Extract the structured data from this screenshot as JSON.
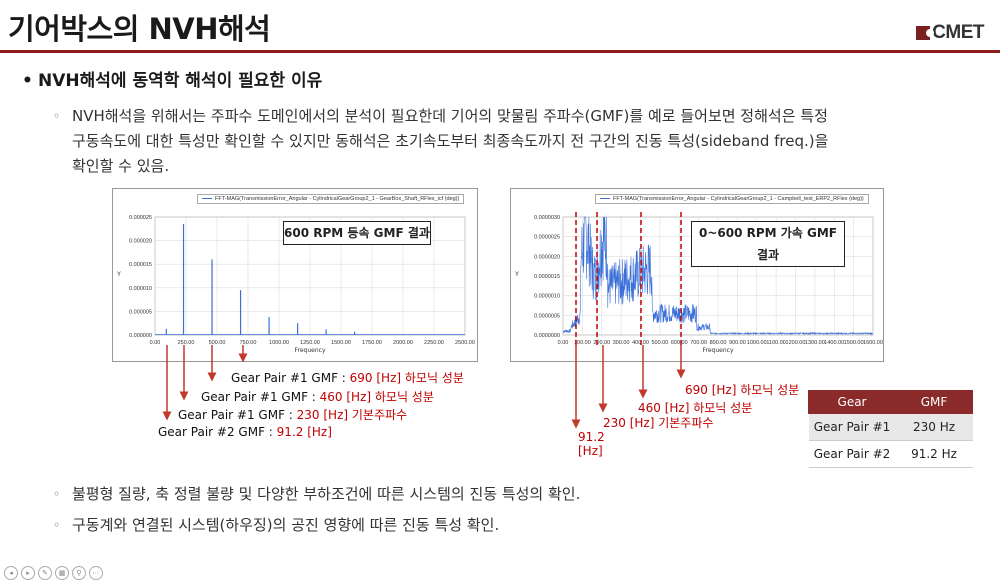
{
  "title": "기어박스의 NVH해석",
  "logo": "CMET",
  "bullet1": "NVH해석에 동역학 해석이 필요한 이유",
  "bullet1_dot": "•",
  "sub_marker": "◦",
  "para": [
    "NVH해석을 위해서는 주파수 도메인에서의 분석이 필요한데 기어의 맞물림 주파수(GMF)를 예로 들어보면 정해석은 특정",
    "구동속도에 대한 특성만 확인할 수 있지만 동해석은 초기속도부터 최종속도까지 전 구간의 진동 특성(sideband freq.)을",
    "확인할 수 있음."
  ],
  "chart_data": [
    {
      "type": "line",
      "legend": "FFT-MAG(TransmissionError_Angular - CylindricalGearGroup2_1 - GearBox_Shaft_RFlex_icf (deg))",
      "box_label": "600 RPM 등속 GMF 결과",
      "xlabel": "Frequency",
      "ylabel": "Y",
      "xticks": [
        "0.00",
        "250.00",
        "500.00",
        "750.00",
        "1000.00",
        "1250.00",
        "1500.00",
        "1750.00",
        "2000.00",
        "2250.00",
        "2500.00"
      ],
      "yticks": [
        "0.000000",
        "0.000005",
        "0.000010",
        "0.000015",
        "0.000020",
        "0.000025"
      ],
      "xlim": [
        0,
        2500
      ],
      "ylim": [
        0,
        2.5e-05
      ],
      "peaks": [
        [
          91.2,
          1.3e-06
        ],
        [
          230,
          2.35e-05
        ],
        [
          460,
          1.6e-05
        ],
        [
          690,
          9.5e-06
        ],
        [
          920,
          3.8e-06
        ],
        [
          1150,
          2.5e-06
        ],
        [
          1380,
          1.2e-06
        ],
        [
          1610,
          7e-07
        ]
      ]
    },
    {
      "type": "line",
      "legend": "FFT-MAG(TransmissionError_Angular - CylindricalGearGroup2_1 - Campbell_test_ERP2_RFlex (deg))",
      "box_label": "0~600 RPM 가속 GMF 결과",
      "xlabel": "Frequency",
      "ylabel": "Y",
      "xticks": [
        "0.00",
        "100.00",
        "200.00",
        "300.00",
        "400.00",
        "500.00",
        "600.00",
        "700.00",
        "800.00",
        "900.00",
        "1000.00",
        "1100.00",
        "1200.00",
        "1300.00",
        "1400.00",
        "1500.00",
        "1600.00"
      ],
      "yticks": [
        "0.0000000",
        "0.0000005",
        "0.0000010",
        "0.0000015",
        "0.0000020",
        "0.0000025",
        "0.0000030"
      ],
      "xlim": [
        0,
        1600
      ],
      "ylim": [
        0,
        3e-06
      ],
      "markers": [
        91.2,
        230,
        460,
        690
      ]
    }
  ],
  "left_ann": [
    {
      "pre": "Gear Pair #1 GMF : ",
      "red": "690 [Hz] 하모닉 성분"
    },
    {
      "pre": "Gear Pair #1 GMF : ",
      "red": "460 [Hz]  하모닉 성분"
    },
    {
      "pre": "Gear Pair #1 GMF  : ",
      "red": "230 [Hz] 기본주파수"
    },
    {
      "pre": "Gear Pair #2 GMF : ",
      "red": "91.2 [Hz]"
    }
  ],
  "right_ann": [
    "690 [Hz] 하모닉 성분",
    "460 [Hz]  하모닉 성분",
    "230 [Hz] 기본주파수",
    "91.2",
    "[Hz]"
  ],
  "table": {
    "headers": [
      "Gear",
      "GMF"
    ],
    "rows": [
      [
        "Gear Pair #1",
        "230 Hz"
      ],
      [
        "Gear Pair #2",
        "91.2 Hz"
      ]
    ]
  },
  "bullets_bottom": [
    "불평형 질량, 축 정렬 불량 및 다양한 부하조건에 따른 시스템의 진동 특성의 확인.",
    "구동계와 연결된 시스템(하우징)의 공진 영향에 따른 진동 특성 확인."
  ],
  "colors": {
    "accent": "#8b1d1d",
    "red": "#c00000",
    "line": "#3a6fd8"
  }
}
